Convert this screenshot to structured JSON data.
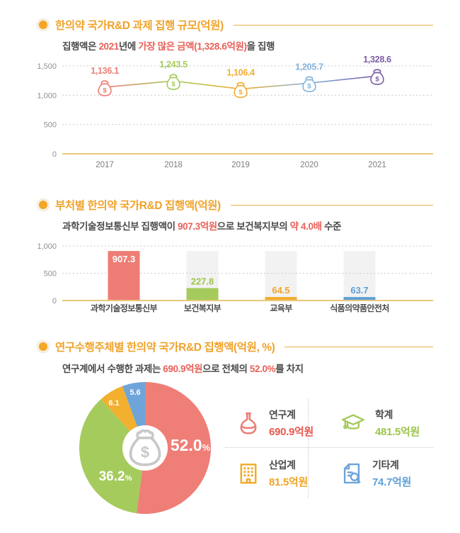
{
  "colors": {
    "accent_orange": "#F0A32B",
    "rule_gold": "#EBB24A",
    "bullet_orange": "#F5A623",
    "highlight_red": "#E8625A",
    "text_dark": "#4A4A4A",
    "axis_gray": "#8F8F8F",
    "grid_gray": "#CCCCCC",
    "baseline_tan": "#EAC87C",
    "bar_bg_gray": "#F2F2F2",
    "center_bag_gray": "#C8C8C8"
  },
  "chart_data": [
    {
      "type": "line",
      "title": "한의약 국가R&D 과제 집행 규모(억원)",
      "subtitle_parts": [
        [
          "집행액은 ",
          0
        ],
        [
          "2021",
          1
        ],
        [
          "년에 ",
          0
        ],
        [
          "가장 많은 금액(1,328.6억원)",
          1
        ],
        [
          "을 집행",
          0
        ]
      ],
      "x": [
        "2017",
        "2018",
        "2019",
        "2020",
        "2021"
      ],
      "values": [
        1136.1,
        1243.5,
        1106.4,
        1205.7,
        1328.6
      ],
      "value_labels": [
        "1,136.1",
        "1,243.5",
        "1,106.4",
        "1,205.7",
        "1,328.6"
      ],
      "point_colors": [
        "#ED7D75",
        "#A5CB5C",
        "#F2AC2F",
        "#82B4DC",
        "#7B5CA7"
      ],
      "marker": "money-bag-icon",
      "ylim": [
        0,
        1500
      ],
      "yticks": [
        {
          "v": 1500,
          "label": "1,500"
        },
        {
          "v": 1000,
          "label": "1,000"
        },
        {
          "v": 500,
          "label": "500"
        },
        {
          "v": 0,
          "label": "0"
        }
      ],
      "grid": "dotted horizontal"
    },
    {
      "type": "bar",
      "title": "부처별 한의약 국가R&D 집행액(억원)",
      "subtitle_parts": [
        [
          "과학기술정보통신부 집행액이 ",
          0
        ],
        [
          "907.3억원",
          1
        ],
        [
          "으로 보건복지부의 ",
          0
        ],
        [
          "약 4.0배",
          1
        ],
        [
          " 수준",
          0
        ]
      ],
      "categories": [
        "과학기술정보통신부",
        "보건복지부",
        "교육부",
        "식품의약품안전처"
      ],
      "values": [
        907.3,
        227.8,
        64.5,
        63.7
      ],
      "value_labels": [
        "907.3",
        "227.8",
        "64.5",
        "63.7"
      ],
      "bar_colors": [
        "#ED7D75",
        "#A5CB5C",
        "#F2AC2F",
        "#5F9FD6"
      ],
      "value_label_colors": [
        "#FFFFFF",
        "#9EC54B",
        "#F0A427",
        "#5E9FD8"
      ],
      "bg_column_value": 907.3,
      "ylim": [
        0,
        1000
      ],
      "yticks": [
        {
          "v": 1000,
          "label": "1,000"
        },
        {
          "v": 500,
          "label": "500"
        },
        {
          "v": 0,
          "label": "0"
        }
      ],
      "grid": "dotted horizontal"
    },
    {
      "type": "pie",
      "donut": true,
      "title": "연구수행주체별 한의약 국가R&D 집행액(억원, %)",
      "subtitle_parts": [
        [
          "연구계에서 수행한 과제는 ",
          0
        ],
        [
          "690.9억원",
          1
        ],
        [
          "으로 전체의 ",
          0
        ],
        [
          "52.0%",
          1
        ],
        [
          "를 차지",
          0
        ]
      ],
      "center_icon": "money-bag-icon",
      "slices": [
        {
          "name": "연구계",
          "pct": 52.0,
          "label": "52.0",
          "suffix": "%",
          "color": "#EF7E77"
        },
        {
          "name": "학계",
          "pct": 36.2,
          "label": "36.2",
          "suffix": "%",
          "color": "#A5CB5C"
        },
        {
          "name": "산업계",
          "pct": 6.1,
          "label": "6.1",
          "suffix": "",
          "color": "#F3B02F"
        },
        {
          "name": "기타계",
          "pct": 5.6,
          "label": "5.6",
          "suffix": "",
          "color": "#6FA4D9"
        }
      ]
    }
  ],
  "legend": {
    "items": [
      {
        "label": "연구계",
        "value": "690.9억원",
        "icon": "flask-icon",
        "icon_color": "#ED7D75",
        "value_color": "#E8574E"
      },
      {
        "label": "학계",
        "value": "481.5억원",
        "icon": "graduation-cap-icon",
        "icon_color": "#A5CB5C",
        "value_color": "#9EC54B"
      },
      {
        "label": "산업계",
        "value": "81.5억원",
        "icon": "building-icon",
        "icon_color": "#F2AC2F",
        "value_color": "#F0A427"
      },
      {
        "label": "기타계",
        "value": "74.7억원",
        "icon": "document-search-icon",
        "icon_color": "#6FA4D9",
        "value_color": "#5E9FD8"
      }
    ]
  }
}
